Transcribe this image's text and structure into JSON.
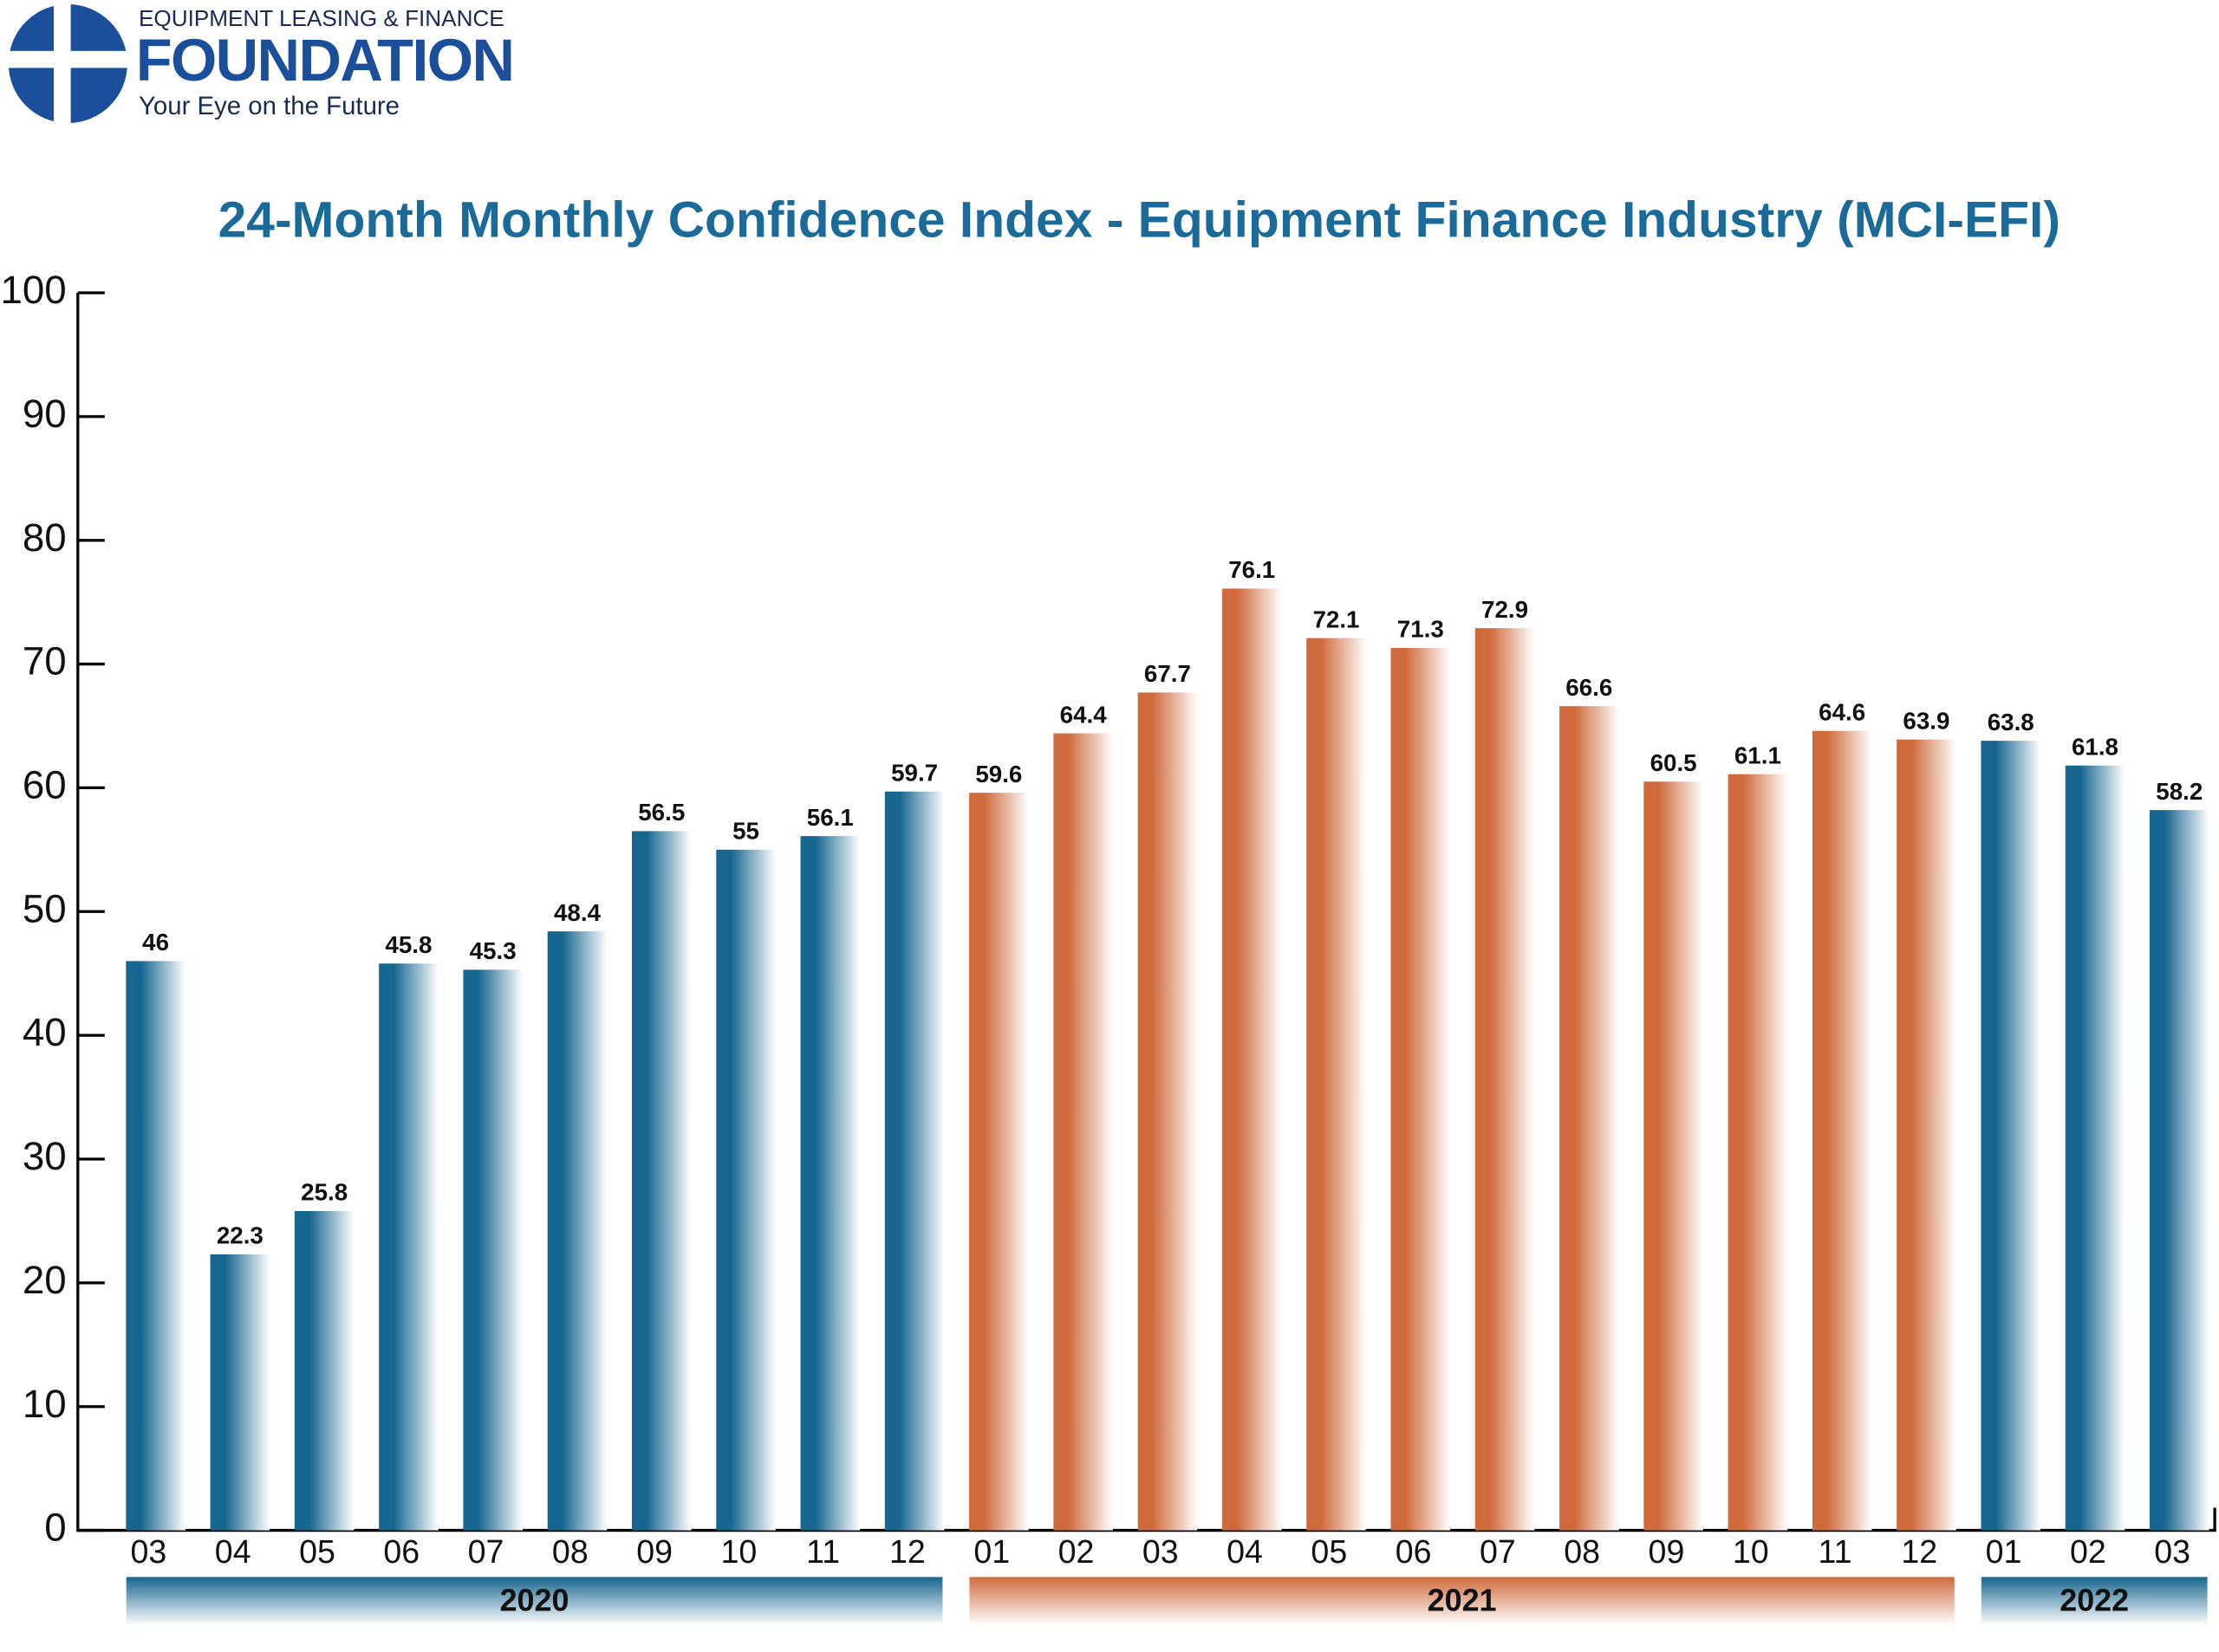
{
  "logo": {
    "line1": "EQUIPMENT LEASING & FINANCE",
    "name": "FOUNDATION",
    "tagline": "Your Eye on the Future"
  },
  "chart_data": {
    "type": "bar",
    "title": "24-Month Monthly Confidence Index - Equipment Finance Industry (MCI-EFI)",
    "categories": [
      "03",
      "04",
      "05",
      "06",
      "07",
      "08",
      "09",
      "10",
      "11",
      "12",
      "01",
      "02",
      "03",
      "04",
      "05",
      "06",
      "07",
      "08",
      "09",
      "10",
      "11",
      "12",
      "01",
      "02",
      "03"
    ],
    "series": [
      {
        "name": "2020",
        "color": "#17668f",
        "values": [
          46,
          22.3,
          25.8,
          45.8,
          45.3,
          48.4,
          56.5,
          55,
          56.1,
          59.7,
          null,
          null,
          null,
          null,
          null,
          null,
          null,
          null,
          null,
          null,
          null,
          null,
          null,
          null,
          null
        ]
      },
      {
        "name": "2021",
        "color": "#cf6a3c",
        "values": [
          null,
          null,
          null,
          null,
          null,
          null,
          null,
          null,
          null,
          null,
          59.6,
          64.4,
          67.7,
          76.1,
          72.1,
          71.3,
          72.9,
          66.6,
          60.5,
          61.1,
          64.6,
          63.9,
          null,
          null,
          null
        ]
      },
      {
        "name": "2022",
        "color": "#17668f",
        "values": [
          null,
          null,
          null,
          null,
          null,
          null,
          null,
          null,
          null,
          null,
          null,
          null,
          null,
          null,
          null,
          null,
          null,
          null,
          null,
          null,
          null,
          null,
          63.8,
          61.8,
          58.2
        ]
      }
    ],
    "ylim": [
      0,
      100
    ],
    "yticks": [
      0,
      10,
      20,
      30,
      40,
      50,
      60,
      70,
      80,
      90,
      100
    ]
  }
}
